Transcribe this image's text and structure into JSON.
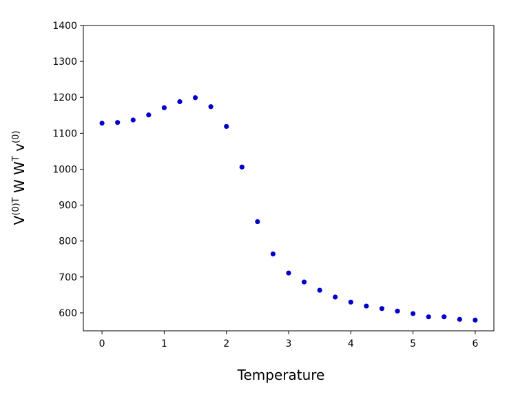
{
  "chart_data": {
    "type": "scatter",
    "title": "",
    "xlabel": "Temperature",
    "ylabel": {
      "v1": "V",
      "sup1": "(0)T",
      "mid": " W W",
      "sup2": "T",
      "v2": " v",
      "sup3": "(0)"
    },
    "xlim": [
      -0.3,
      6.3
    ],
    "ylim": [
      550,
      1400
    ],
    "xticks": [
      0,
      1,
      2,
      3,
      4,
      5,
      6
    ],
    "yticks": [
      600,
      700,
      800,
      900,
      1000,
      1100,
      1200,
      1300,
      1400
    ],
    "grid": false,
    "legend": "none",
    "point_color": "#0000cc",
    "series": [
      {
        "x": [
          0,
          0.25,
          0.5,
          0.75,
          1,
          1.25,
          1.5,
          1.75,
          2,
          2.25,
          2.5,
          2.75,
          3,
          3.25,
          3.5,
          3.75,
          4,
          4.25,
          4.5,
          4.75,
          5,
          5.25,
          5.5,
          5.75,
          6
        ],
        "y": [
          1128,
          1130,
          1137,
          1151,
          1171,
          1188,
          1199,
          1174,
          1119,
          1006,
          854,
          764,
          711,
          686,
          663,
          644,
          630,
          619,
          612,
          605,
          598,
          589,
          589,
          582,
          580
        ]
      }
    ]
  }
}
